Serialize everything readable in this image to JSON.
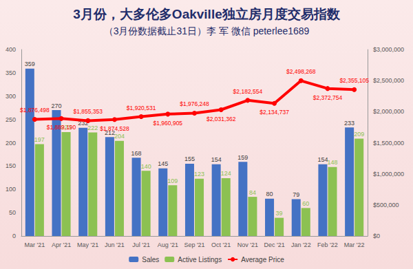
{
  "chart_data": {
    "type": "bar",
    "title": "3月份，大多伦多Oakville独立房月度交易指数",
    "subtitle": "（3月份数据截止31日）李 军 微信 peterlee1689",
    "categories": [
      "Mar '21",
      "Apr '21",
      "May '21",
      "Jun '21",
      "Jul '21",
      "Aug '21",
      "Sep '21",
      "Oct '21",
      "Nov '21",
      "Dec '21",
      "Jan '22",
      "Feb '22",
      "Mar '22"
    ],
    "series": [
      {
        "name": "Sales",
        "type": "bar",
        "color": "#4472c4",
        "values": [
          359,
          270,
          232,
          212,
          168,
          145,
          155,
          154,
          159,
          80,
          79,
          154,
          233
        ]
      },
      {
        "name": "Active Listings",
        "type": "bar",
        "color": "#8cc152",
        "values": [
          197,
          223,
          222,
          204,
          140,
          109,
          123,
          124,
          84,
          39,
          60,
          148,
          209
        ]
      },
      {
        "name": "Average Price",
        "type": "line",
        "color": "#ff0000",
        "axis": "y2",
        "marker": "circle",
        "values": [
          1876498,
          1889190,
          1855353,
          1874528,
          1920531,
          1960905,
          1976248,
          2031362,
          2182554,
          2134737,
          2498268,
          2372754,
          2355105
        ],
        "value_labels": [
          "$1,876,498",
          "$1,889,190",
          "$1,855,353",
          "$1,874,528",
          "$1,920,531",
          "$1,960,905",
          "$1,976,248",
          "$2,031,362",
          "$2,182,554",
          "$2,134,737",
          "$2,498,268",
          "$2,372,754",
          "$2,355,105"
        ]
      }
    ],
    "ylim": [
      0,
      400
    ],
    "yticks": [
      0,
      50,
      100,
      150,
      200,
      250,
      300,
      350,
      400
    ],
    "y2lim": [
      0,
      3000000
    ],
    "y2ticks": [
      {
        "value": 0,
        "label": "$0"
      },
      {
        "value": 500000,
        "label": "$500,000"
      },
      {
        "value": 1000000,
        "label": "$1,000,000"
      },
      {
        "value": 1500000,
        "label": "$1,500,000"
      },
      {
        "value": 2000000,
        "label": "$2,000,000"
      },
      {
        "value": 2500000,
        "label": "$2,500,000"
      },
      {
        "value": 3000000,
        "label": "$3,000,000"
      }
    ],
    "grid": false,
    "legend": "bottom",
    "data_labels": true
  }
}
